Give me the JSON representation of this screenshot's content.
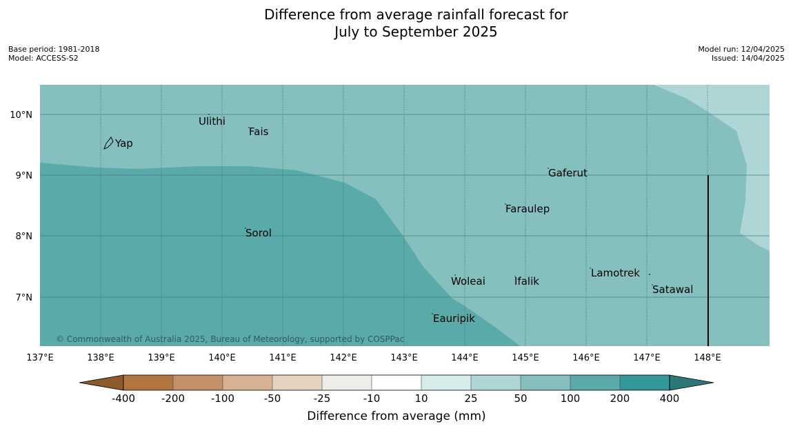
{
  "title_line1": "Difference from average rainfall forecast for",
  "title_line2": "July to September 2025",
  "meta": {
    "base_period": "Base period: 1981-2018",
    "model": "Model: ACCESS-S2",
    "model_run": "Model run: 12/04/2025",
    "issued": "Issued: 14/04/2025"
  },
  "map": {
    "copyright": "© Commonwealth of Australia 2025, Bureau of Meteorology, supported by COSPPac",
    "lat_labels": [
      "10°N",
      "9°N",
      "8°N",
      "7°N"
    ],
    "lon_labels": [
      "137°E",
      "138°E",
      "139°E",
      "140°E",
      "141°E",
      "142°E",
      "143°E",
      "144°E",
      "145°E",
      "146°E",
      "147°E",
      "148°E"
    ],
    "places": [
      "Yap",
      "Ulithi",
      "Fais",
      "Gaferut",
      "Faraulep",
      "Sorol",
      "Woleai",
      "Ifalik",
      "Lamotrek",
      "Satawal",
      "Eauripik"
    ]
  },
  "colorbar": {
    "labels": [
      "-400",
      "-200",
      "-100",
      "-50",
      "-25",
      "-10",
      "10",
      "25",
      "50",
      "100",
      "200",
      "400"
    ],
    "colors": [
      "#8c5a2c",
      "#b07540",
      "#c49068",
      "#d7b292",
      "#e5d2c1",
      "#efede9",
      "#ffffff",
      "#d6eceb",
      "#aed6d6",
      "#85bfbe",
      "#5aaaa9",
      "#34979a",
      "#2d7778"
    ],
    "label": "Difference from average (mm)"
  }
}
